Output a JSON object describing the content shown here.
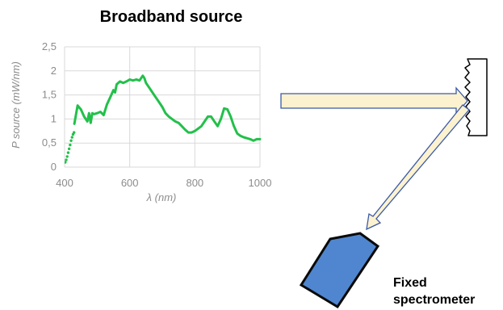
{
  "diagram": {
    "title": "Broadband source",
    "spectrometer_label_line1": "Fixed",
    "spectrometer_label_line2": "spectrometer",
    "colors": {
      "spectrum_line": "#22c04a",
      "beam_fill": "#fdf2cf",
      "beam_stroke": "#3b5aa6",
      "spectrometer_fill": "#4f86cf",
      "spectrometer_stroke": "#0a0a0a",
      "grid": "#d9d9d9",
      "tick_text": "#8c8c8c"
    }
  },
  "chart_data": {
    "type": "line",
    "title": "Broadband source",
    "xlabel": "λ (nm)",
    "ylabel": "P source (mW/nm)",
    "xlim": [
      400,
      1000
    ],
    "ylim": [
      0,
      2.5
    ],
    "x_ticks": [
      "400",
      "600",
      "800",
      "1000"
    ],
    "y_ticks": [
      "0",
      "0,5",
      "1",
      "1,5",
      "2",
      "2,5"
    ],
    "grid": true,
    "series": [
      {
        "x": [
          402,
          405,
          408,
          411,
          414,
          417,
          420,
          423,
          426,
          429
        ],
        "y": [
          0.1,
          0.15,
          0.22,
          0.3,
          0.38,
          0.46,
          0.55,
          0.62,
          0.68,
          0.72
        ],
        "style": "dotted"
      },
      {
        "x": [
          430,
          440,
          450,
          460,
          470,
          475,
          480,
          485,
          490,
          500,
          510,
          520,
          530,
          540,
          550,
          555,
          560,
          570,
          580,
          590,
          600,
          610,
          620,
          630,
          640,
          645,
          650,
          660,
          670,
          680,
          690,
          700,
          710,
          720,
          730,
          740,
          750,
          760,
          770,
          780,
          790,
          800,
          810,
          820,
          830,
          840,
          850,
          860,
          870,
          880,
          890,
          900,
          910,
          920,
          930,
          940,
          950,
          960,
          970,
          980,
          990,
          1000
        ],
        "y": [
          0.9,
          1.28,
          1.2,
          1.05,
          0.95,
          1.12,
          0.92,
          1.12,
          1.1,
          1.12,
          1.15,
          1.08,
          1.3,
          1.45,
          1.6,
          1.55,
          1.72,
          1.78,
          1.75,
          1.78,
          1.82,
          1.8,
          1.82,
          1.8,
          1.9,
          1.85,
          1.75,
          1.65,
          1.55,
          1.45,
          1.35,
          1.25,
          1.12,
          1.05,
          1.0,
          0.95,
          0.92,
          0.85,
          0.78,
          0.72,
          0.72,
          0.75,
          0.8,
          0.85,
          0.95,
          1.05,
          1.05,
          0.95,
          0.85,
          1.0,
          1.22,
          1.2,
          1.05,
          0.85,
          0.7,
          0.65,
          0.62,
          0.6,
          0.58,
          0.55,
          0.58,
          0.58
        ]
      }
    ]
  }
}
